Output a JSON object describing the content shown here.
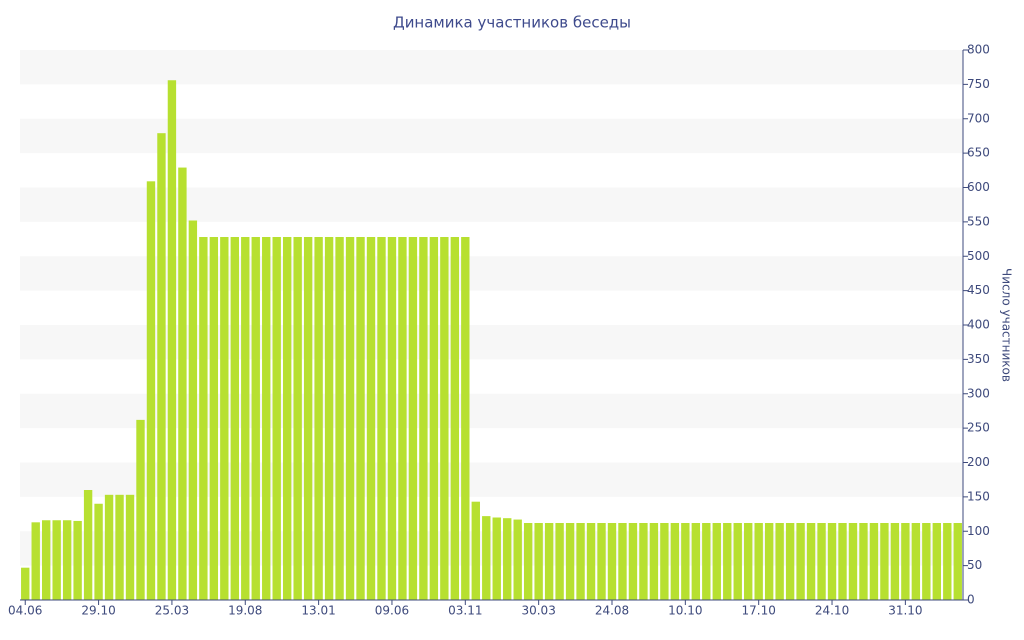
{
  "chart_data": {
    "type": "bar",
    "title": "Динамика участников беседы",
    "y_label": "Число участников",
    "categories": [
      "04.06",
      null,
      null,
      null,
      null,
      null,
      null,
      "29.10",
      null,
      null,
      null,
      null,
      null,
      null,
      "25.03",
      null,
      null,
      null,
      null,
      null,
      null,
      "19.08",
      null,
      null,
      null,
      null,
      null,
      null,
      "13.01",
      null,
      null,
      null,
      null,
      null,
      null,
      "09.06",
      null,
      null,
      null,
      null,
      null,
      null,
      "03.11",
      null,
      null,
      null,
      null,
      null,
      null,
      "30.03",
      null,
      null,
      null,
      null,
      null,
      null,
      "24.08",
      null,
      null,
      null,
      null,
      null,
      null,
      "10.10",
      null,
      null,
      null,
      null,
      null,
      null,
      "17.10",
      null,
      null,
      null,
      null,
      null,
      null,
      "24.10",
      null,
      null,
      null,
      null,
      null,
      null,
      "31.10",
      null,
      null,
      null,
      null,
      null
    ],
    "values": [
      47,
      113,
      116,
      116,
      116,
      115,
      160,
      140,
      153,
      153,
      153,
      262,
      609,
      679,
      756,
      629,
      552,
      528,
      528,
      528,
      528,
      528,
      528,
      528,
      528,
      528,
      528,
      528,
      528,
      528,
      528,
      528,
      528,
      528,
      528,
      528,
      528,
      528,
      528,
      528,
      528,
      528,
      528,
      143,
      122,
      120,
      119,
      117,
      112,
      112,
      112,
      112,
      112,
      112,
      112,
      112,
      112,
      112,
      112,
      112,
      112,
      112,
      112,
      112,
      112,
      112,
      112,
      112,
      112,
      112,
      112,
      112,
      112,
      112,
      112,
      112,
      112,
      112,
      112,
      112,
      112,
      112,
      112,
      112,
      112,
      112,
      112,
      112,
      112,
      112
    ],
    "color": "#b7e030",
    "ylim": [
      0,
      800
    ],
    "yticks": [
      0,
      50,
      100,
      150,
      200,
      250,
      300,
      350,
      400,
      450,
      500,
      550,
      600,
      650,
      700,
      750,
      800
    ],
    "y_axis_side": "right",
    "stripes": true
  }
}
